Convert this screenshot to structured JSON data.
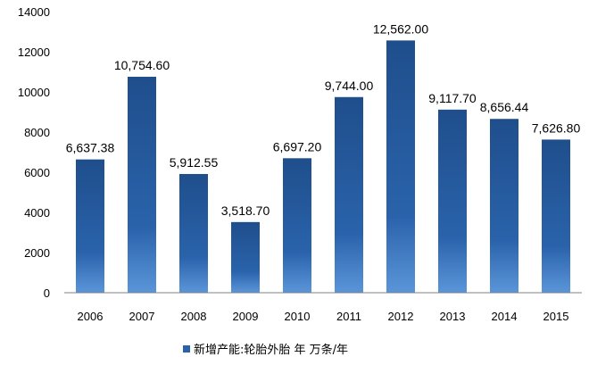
{
  "chart_data": {
    "type": "bar",
    "categories": [
      "2006",
      "2007",
      "2008",
      "2009",
      "2010",
      "2011",
      "2012",
      "2013",
      "2014",
      "2015"
    ],
    "series": [
      {
        "name": "新增产能:轮胎外胎 年 万条/年",
        "values": [
          6637.38,
          10754.6,
          5912.55,
          3518.7,
          6697.2,
          9744.0,
          12562.0,
          9117.7,
          8656.44,
          7626.8
        ],
        "labels": [
          "6,637.38",
          "10,754.60",
          "5,912.55",
          "3,518.70",
          "6,697.20",
          "9,744.00",
          "12,562.00",
          "9,117.70",
          "8,656.44",
          "7,626.80"
        ]
      }
    ],
    "y_ticks": [
      "0",
      "2000",
      "4000",
      "6000",
      "8000",
      "10000",
      "12000",
      "14000"
    ],
    "ylim": [
      0,
      14000
    ],
    "grid": false,
    "legend_position": "bottom",
    "colors": {
      "bar_top": "#1f4e8c",
      "bar_mid": "#2a63ab",
      "bar_bottom": "#5b95d9",
      "axis": "#808080"
    }
  }
}
